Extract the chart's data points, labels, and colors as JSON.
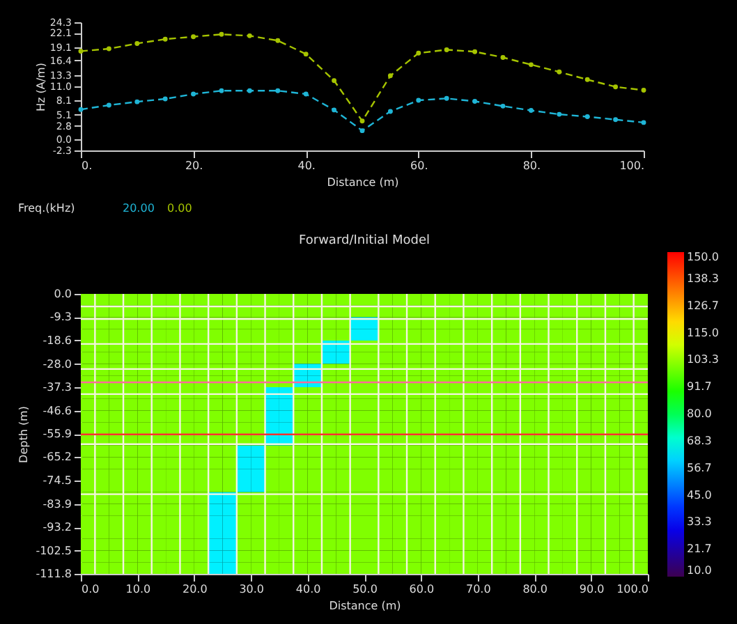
{
  "chart_data": [
    {
      "type": "line",
      "xlabel": "Distance (m)",
      "ylabel": "Hz (A/m)",
      "legend_title": "Freq.(kHz)",
      "legend": "bottom left",
      "marker": "circle",
      "x": [
        0,
        5,
        10,
        15,
        20,
        25,
        30,
        35,
        40,
        45,
        50,
        55,
        60,
        65,
        70,
        75,
        80,
        85,
        90,
        95,
        100
      ],
      "xlim": [
        0,
        100
      ],
      "xticks": [
        {
          "value": 0,
          "label": "0."
        },
        {
          "value": 20,
          "label": "20."
        },
        {
          "value": 40,
          "label": "40."
        },
        {
          "value": 60,
          "label": "60."
        },
        {
          "value": 80,
          "label": "80."
        },
        {
          "value": 100,
          "label": "100."
        }
      ],
      "ylim": [
        -2.3,
        24.3
      ],
      "yticks": [
        -2.3,
        {
          "value": 0,
          "label": "0.0"
        },
        2.8,
        5.1,
        8.1,
        {
          "value": 11,
          "label": "11.0"
        },
        13.3,
        16.4,
        19.1,
        22.1,
        24.3
      ],
      "series": [
        {
          "name": "20.00",
          "color": "#1fb5d6",
          "line_style": "dashed",
          "values": [
            6.2,
            7.1,
            7.8,
            8.4,
            9.4,
            10.1,
            10.1,
            10.1,
            9.4,
            6.1,
            1.8,
            5.8,
            8.1,
            8.5,
            7.9,
            6.9,
            6.0,
            5.2,
            4.7,
            4.1,
            3.5
          ]
        },
        {
          "name": "0.00",
          "color": "#a6c400",
          "line_style": "dashed",
          "values": [
            18.3,
            18.8,
            19.9,
            20.8,
            21.3,
            21.8,
            21.5,
            20.5,
            17.7,
            12.2,
            3.8,
            13.2,
            17.9,
            18.6,
            18.2,
            17.0,
            15.5,
            14.0,
            12.4,
            10.9,
            10.2
          ]
        }
      ]
    },
    {
      "type": "heatmap",
      "title": "Forward/Initial Model",
      "xlabel": "Distance (m)",
      "ylabel": "Depth (m)",
      "xlim": [
        0,
        100
      ],
      "xticks": [
        {
          "value": 0,
          "label": "0.0"
        },
        {
          "value": 10,
          "label": "10.0"
        },
        {
          "value": 20,
          "label": "20.0"
        },
        {
          "value": 30,
          "label": "30.0"
        },
        {
          "value": 40,
          "label": "40.0"
        },
        {
          "value": 50,
          "label": "50.0"
        },
        {
          "value": 60,
          "label": "60.0"
        },
        {
          "value": 70,
          "label": "70.0"
        },
        {
          "value": 80,
          "label": "80.0"
        },
        {
          "value": 90,
          "label": "90.0"
        },
        {
          "value": 100,
          "label": "100.0"
        }
      ],
      "ylim": [
        -111.8,
        0
      ],
      "yticks": [
        {
          "value": 0,
          "label": "0.0"
        },
        -9.3,
        -18.6,
        {
          "value": -28,
          "label": "-28.0"
        },
        -37.3,
        -46.6,
        -55.9,
        -65.2,
        -74.5,
        -83.9,
        -93.2,
        -102.5,
        -111.8
      ],
      "cells": [
        [
          101,
          101,
          101,
          101,
          101,
          101,
          101,
          101,
          101,
          101,
          101,
          101,
          101,
          101,
          101,
          101,
          101,
          101,
          101,
          101,
          101,
          101,
          101,
          101,
          101,
          101,
          101,
          101,
          101,
          101,
          101,
          101,
          101,
          101,
          101,
          101,
          101,
          101,
          101,
          101
        ],
        [
          101,
          101,
          101,
          101,
          101,
          101,
          101,
          101,
          101,
          101,
          101,
          101,
          101,
          101,
          101,
          101,
          101,
          101,
          101,
          101,
          101,
          101,
          101,
          101,
          101,
          101,
          101,
          101,
          101,
          101,
          101,
          101,
          101,
          101,
          101,
          101,
          101,
          101,
          101,
          101
        ],
        [
          101,
          101,
          101,
          101,
          101,
          101,
          101,
          101,
          101,
          101,
          101,
          101,
          101,
          101,
          101,
          101,
          101,
          101,
          101,
          64,
          64,
          101,
          101,
          101,
          101,
          101,
          101,
          101,
          101,
          101,
          101,
          101,
          101,
          101,
          101,
          101,
          101,
          101,
          101,
          101
        ],
        [
          101,
          101,
          101,
          101,
          101,
          101,
          101,
          101,
          101,
          101,
          101,
          101,
          101,
          101,
          101,
          101,
          101,
          101,
          101,
          64,
          64,
          101,
          101,
          101,
          101,
          101,
          101,
          101,
          101,
          101,
          101,
          101,
          101,
          101,
          101,
          101,
          101,
          101,
          101,
          101
        ],
        [
          101,
          101,
          101,
          101,
          101,
          101,
          101,
          101,
          101,
          101,
          101,
          101,
          101,
          101,
          101,
          101,
          101,
          64,
          64,
          101,
          101,
          101,
          101,
          101,
          101,
          101,
          101,
          101,
          101,
          101,
          101,
          101,
          101,
          101,
          101,
          101,
          101,
          101,
          101,
          101
        ],
        [
          101,
          101,
          101,
          101,
          101,
          101,
          101,
          101,
          101,
          101,
          101,
          101,
          101,
          101,
          101,
          101,
          101,
          64,
          64,
          101,
          101,
          101,
          101,
          101,
          101,
          101,
          101,
          101,
          101,
          101,
          101,
          101,
          101,
          101,
          101,
          101,
          101,
          101,
          101,
          101
        ],
        [
          101,
          101,
          101,
          101,
          101,
          101,
          101,
          101,
          101,
          101,
          101,
          101,
          101,
          101,
          101,
          64,
          64,
          101,
          101,
          101,
          101,
          101,
          101,
          101,
          101,
          101,
          101,
          101,
          101,
          101,
          101,
          101,
          101,
          101,
          101,
          101,
          101,
          101,
          101,
          101
        ],
        [
          101,
          101,
          101,
          101,
          101,
          101,
          101,
          101,
          101,
          101,
          101,
          101,
          101,
          101,
          101,
          64,
          64,
          101,
          101,
          101,
          101,
          101,
          101,
          101,
          101,
          101,
          101,
          101,
          101,
          101,
          101,
          101,
          101,
          101,
          101,
          101,
          101,
          101,
          101,
          101
        ],
        [
          101,
          101,
          101,
          101,
          101,
          101,
          101,
          101,
          101,
          101,
          101,
          101,
          101,
          64,
          64,
          101,
          101,
          101,
          101,
          101,
          101,
          101,
          101,
          101,
          101,
          101,
          101,
          101,
          101,
          101,
          101,
          101,
          101,
          101,
          101,
          101,
          101,
          101,
          101,
          101
        ],
        [
          101,
          101,
          101,
          101,
          101,
          101,
          101,
          101,
          101,
          101,
          101,
          101,
          101,
          64,
          64,
          101,
          101,
          101,
          101,
          101,
          101,
          101,
          101,
          101,
          101,
          101,
          101,
          101,
          101,
          101,
          101,
          101,
          101,
          101,
          101,
          101,
          101,
          101,
          101,
          101
        ],
        [
          101,
          101,
          101,
          101,
          101,
          101,
          101,
          101,
          101,
          101,
          101,
          101,
          101,
          64,
          64,
          101,
          101,
          101,
          101,
          101,
          101,
          101,
          101,
          101,
          101,
          101,
          101,
          101,
          101,
          101,
          101,
          101,
          101,
          101,
          101,
          101,
          101,
          101,
          101,
          101
        ],
        [
          101,
          101,
          101,
          101,
          101,
          101,
          101,
          101,
          101,
          101,
          101,
          101,
          101,
          64,
          64,
          101,
          101,
          101,
          101,
          101,
          101,
          101,
          101,
          101,
          101,
          101,
          101,
          101,
          101,
          101,
          101,
          101,
          101,
          101,
          101,
          101,
          101,
          101,
          101,
          101
        ],
        [
          101,
          101,
          101,
          101,
          101,
          101,
          101,
          101,
          101,
          101,
          101,
          101,
          101,
          64,
          64,
          101,
          101,
          101,
          101,
          101,
          101,
          101,
          101,
          101,
          101,
          101,
          101,
          101,
          101,
          101,
          101,
          101,
          101,
          101,
          101,
          101,
          101,
          101,
          101,
          101
        ],
        [
          101,
          101,
          101,
          101,
          101,
          101,
          101,
          101,
          101,
          101,
          101,
          64,
          64,
          101,
          101,
          101,
          101,
          101,
          101,
          101,
          101,
          101,
          101,
          101,
          101,
          101,
          101,
          101,
          101,
          101,
          101,
          101,
          101,
          101,
          101,
          101,
          101,
          101,
          101,
          101
        ],
        [
          101,
          101,
          101,
          101,
          101,
          101,
          101,
          101,
          101,
          101,
          101,
          64,
          64,
          101,
          101,
          101,
          101,
          101,
          101,
          101,
          101,
          101,
          101,
          101,
          101,
          101,
          101,
          101,
          101,
          101,
          101,
          101,
          101,
          101,
          101,
          101,
          101,
          101,
          101,
          101
        ],
        [
          101,
          101,
          101,
          101,
          101,
          101,
          101,
          101,
          101,
          101,
          101,
          64,
          64,
          101,
          101,
          101,
          101,
          101,
          101,
          101,
          101,
          101,
          101,
          101,
          101,
          101,
          101,
          101,
          101,
          101,
          101,
          101,
          101,
          101,
          101,
          101,
          101,
          101,
          101,
          101
        ],
        [
          101,
          101,
          101,
          101,
          101,
          101,
          101,
          101,
          101,
          101,
          101,
          64,
          64,
          101,
          101,
          101,
          101,
          101,
          101,
          101,
          101,
          101,
          101,
          101,
          101,
          101,
          101,
          101,
          101,
          101,
          101,
          101,
          101,
          101,
          101,
          101,
          101,
          101,
          101,
          101
        ],
        [
          101,
          101,
          101,
          101,
          101,
          101,
          101,
          101,
          101,
          64,
          64,
          101,
          101,
          101,
          101,
          101,
          101,
          101,
          101,
          101,
          101,
          101,
          101,
          101,
          101,
          101,
          101,
          101,
          101,
          101,
          101,
          101,
          101,
          101,
          101,
          101,
          101,
          101,
          101,
          101
        ],
        [
          101,
          101,
          101,
          101,
          101,
          101,
          101,
          101,
          101,
          64,
          64,
          101,
          101,
          101,
          101,
          101,
          101,
          101,
          101,
          101,
          101,
          101,
          101,
          101,
          101,
          101,
          101,
          101,
          101,
          101,
          101,
          101,
          101,
          101,
          101,
          101,
          101,
          101,
          101,
          101
        ],
        [
          101,
          101,
          101,
          101,
          101,
          101,
          101,
          101,
          101,
          64,
          64,
          101,
          101,
          101,
          101,
          101,
          101,
          101,
          101,
          101,
          101,
          101,
          101,
          101,
          101,
          101,
          101,
          101,
          101,
          101,
          101,
          101,
          101,
          101,
          101,
          101,
          101,
          101,
          101,
          101
        ],
        [
          101,
          101,
          101,
          101,
          101,
          101,
          101,
          101,
          101,
          64,
          64,
          101,
          101,
          101,
          101,
          101,
          101,
          101,
          101,
          101,
          101,
          101,
          101,
          101,
          101,
          101,
          101,
          101,
          101,
          101,
          101,
          101,
          101,
          101,
          101,
          101,
          101,
          101,
          101,
          101
        ],
        [
          101,
          101,
          101,
          101,
          101,
          101,
          101,
          101,
          101,
          64,
          64,
          101,
          101,
          101,
          101,
          101,
          101,
          101,
          101,
          101,
          101,
          101,
          101,
          101,
          101,
          101,
          101,
          101,
          101,
          101,
          101,
          101,
          101,
          101,
          101,
          101,
          101,
          101,
          101,
          101
        ],
        [
          101,
          101,
          101,
          101,
          101,
          101,
          101,
          101,
          101,
          64,
          64,
          101,
          101,
          101,
          101,
          101,
          101,
          101,
          101,
          101,
          101,
          101,
          101,
          101,
          101,
          101,
          101,
          101,
          101,
          101,
          101,
          101,
          101,
          101,
          101,
          101,
          101,
          101,
          101,
          101
        ],
        [
          101,
          101,
          101,
          101,
          101,
          101,
          101,
          101,
          101,
          64,
          64,
          101,
          101,
          101,
          101,
          101,
          101,
          101,
          101,
          101,
          101,
          101,
          101,
          101,
          101,
          101,
          101,
          101,
          101,
          101,
          101,
          101,
          101,
          101,
          101,
          101,
          101,
          101,
          101,
          101
        ]
      ],
      "clim": [
        10,
        150
      ],
      "cticks": [
        {
          "value": 10,
          "label": "10.0"
        },
        21.7,
        33.3,
        {
          "value": 45,
          "label": "45.0"
        },
        56.7,
        68.3,
        {
          "value": 80,
          "label": "80.0"
        },
        91.7,
        103.3,
        {
          "value": 115,
          "label": "115.0"
        },
        126.7,
        138.3,
        {
          "value": 150,
          "label": "150.0"
        }
      ],
      "ref_lines": [
        {
          "axis": "x",
          "value": 2.5,
          "color": "#f4f4e0"
        },
        {
          "axis": "x",
          "value": 7.5,
          "color": "#f4f4e0"
        },
        {
          "axis": "x",
          "value": 12.5,
          "color": "#f4f4e0"
        },
        {
          "axis": "x",
          "value": 17.5,
          "color": "#f4f4e0"
        },
        {
          "axis": "x",
          "value": 22.5,
          "color": "#f4f4e0"
        },
        {
          "axis": "x",
          "value": 27.5,
          "color": "#f4f4e0"
        },
        {
          "axis": "x",
          "value": 32.5,
          "color": "#f4f4e0"
        },
        {
          "axis": "x",
          "value": 37.5,
          "color": "#f4f4e0"
        },
        {
          "axis": "x",
          "value": 42.5,
          "color": "#f4f4e0"
        },
        {
          "axis": "x",
          "value": 47.5,
          "color": "#f4f4e0"
        },
        {
          "axis": "x",
          "value": 52.5,
          "color": "#f4f4e0"
        },
        {
          "axis": "x",
          "value": 57.5,
          "color": "#f4f4e0"
        },
        {
          "axis": "x",
          "value": 62.5,
          "color": "#f4f4e0"
        },
        {
          "axis": "x",
          "value": 67.5,
          "color": "#f4f4e0"
        },
        {
          "axis": "x",
          "value": 72.5,
          "color": "#f4f4e0"
        },
        {
          "axis": "x",
          "value": 77.5,
          "color": "#f4f4e0"
        },
        {
          "axis": "x",
          "value": 82.5,
          "color": "#f4f4e0"
        },
        {
          "axis": "x",
          "value": 87.5,
          "color": "#f4f4e0"
        },
        {
          "axis": "x",
          "value": 92.5,
          "color": "#f4f4e0"
        },
        {
          "axis": "x",
          "value": 97.5,
          "color": "#f4f4e0"
        },
        {
          "axis": "y",
          "value": -5,
          "color": "#f4f4e0"
        },
        {
          "axis": "y",
          "value": -10,
          "color": "#f4f4e0"
        },
        {
          "axis": "y",
          "value": -20,
          "color": "#f4f4e0"
        },
        {
          "axis": "y",
          "value": -30,
          "color": "#f4f4e0"
        },
        {
          "axis": "y",
          "value": -40,
          "color": "#f4f4e0"
        },
        {
          "axis": "y",
          "value": -60,
          "color": "#f4f4e0"
        },
        {
          "axis": "y",
          "value": -80,
          "color": "#f4f4e0"
        },
        {
          "axis": "y",
          "value": -35.3,
          "color": "#ff6a9a"
        },
        {
          "axis": "y",
          "value": -56.1,
          "color": "#ff3030"
        }
      ]
    }
  ]
}
